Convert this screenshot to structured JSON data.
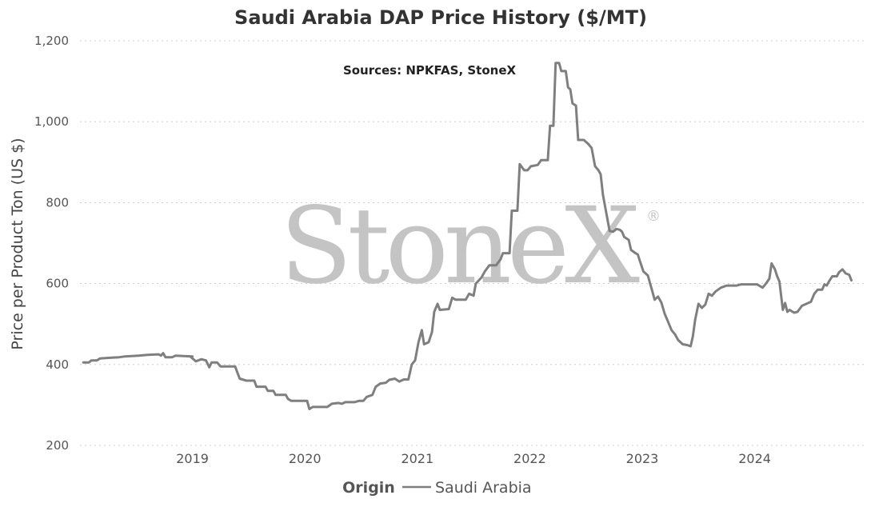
{
  "chart_data": {
    "type": "line",
    "title": "Saudi Arabia DAP Price History ($/MT)",
    "annotation": "Sources: NPKFAS, StoneX",
    "watermark": "StoneX",
    "watermark_mark": "®",
    "xlabel": "",
    "ylabel": "Price per Product Ton (US $)",
    "ylim": [
      200,
      1200
    ],
    "yticks": [
      200,
      400,
      600,
      800,
      1000,
      1200
    ],
    "ytick_labels": [
      "200",
      "400",
      "600",
      "800",
      "1,000",
      "1,200"
    ],
    "xlim": [
      2018.0,
      2024.97
    ],
    "xticks": [
      2019,
      2020,
      2021,
      2022,
      2023,
      2024
    ],
    "xtick_labels": [
      "2019",
      "2020",
      "2021",
      "2022",
      "2023",
      "2024"
    ],
    "grid": "horizontal dotted",
    "legend": {
      "title": "Origin",
      "placement": "bottom-center"
    },
    "colors": {
      "line": "#7f7f7f",
      "grid": "#cfcfcf"
    },
    "series": [
      {
        "name": "Saudi Arabia",
        "points": [
          [
            2018.03,
            405
          ],
          [
            2018.08,
            405
          ],
          [
            2018.1,
            410
          ],
          [
            2018.15,
            410
          ],
          [
            2018.18,
            415
          ],
          [
            2018.28,
            417
          ],
          [
            2018.35,
            418
          ],
          [
            2018.4,
            420
          ],
          [
            2018.52,
            422
          ],
          [
            2018.6,
            424
          ],
          [
            2018.7,
            425
          ],
          [
            2018.72,
            422
          ],
          [
            2018.74,
            428
          ],
          [
            2018.76,
            418
          ],
          [
            2018.82,
            418
          ],
          [
            2018.85,
            422
          ],
          [
            2019.0,
            420
          ],
          [
            2018.98,
            420
          ],
          [
            2019.03,
            408
          ],
          [
            2019.08,
            413
          ],
          [
            2019.12,
            410
          ],
          [
            2019.15,
            393
          ],
          [
            2019.17,
            405
          ],
          [
            2019.22,
            405
          ],
          [
            2019.25,
            395
          ],
          [
            2019.38,
            395
          ],
          [
            2019.4,
            380
          ],
          [
            2019.42,
            365
          ],
          [
            2019.48,
            360
          ],
          [
            2019.55,
            360
          ],
          [
            2019.57,
            345
          ],
          [
            2019.65,
            345
          ],
          [
            2019.67,
            335
          ],
          [
            2019.72,
            335
          ],
          [
            2019.74,
            325
          ],
          [
            2019.83,
            325
          ],
          [
            2019.85,
            315
          ],
          [
            2019.88,
            310
          ],
          [
            2020.02,
            310
          ],
          [
            2020.04,
            290
          ],
          [
            2020.07,
            295
          ],
          [
            2020.2,
            295
          ],
          [
            2020.24,
            303
          ],
          [
            2020.3,
            305
          ],
          [
            2020.33,
            303
          ],
          [
            2020.36,
            307
          ],
          [
            2020.44,
            307
          ],
          [
            2020.48,
            310
          ],
          [
            2020.52,
            310
          ],
          [
            2020.55,
            320
          ],
          [
            2020.6,
            325
          ],
          [
            2020.63,
            345
          ],
          [
            2020.67,
            353
          ],
          [
            2020.72,
            355
          ],
          [
            2020.75,
            362
          ],
          [
            2020.8,
            365
          ],
          [
            2020.84,
            358
          ],
          [
            2020.88,
            363
          ],
          [
            2020.92,
            363
          ],
          [
            2020.95,
            400
          ],
          [
            2020.98,
            410
          ],
          [
            2021.01,
            455
          ],
          [
            2021.04,
            485
          ],
          [
            2021.06,
            450
          ],
          [
            2021.1,
            455
          ],
          [
            2021.13,
            480
          ],
          [
            2021.15,
            530
          ],
          [
            2021.18,
            550
          ],
          [
            2021.2,
            535
          ],
          [
            2021.28,
            537
          ],
          [
            2021.31,
            565
          ],
          [
            2021.34,
            560
          ],
          [
            2021.43,
            560
          ],
          [
            2021.46,
            575
          ],
          [
            2021.5,
            570
          ],
          [
            2021.52,
            600
          ],
          [
            2021.57,
            615
          ],
          [
            2021.6,
            630
          ],
          [
            2021.64,
            645
          ],
          [
            2021.7,
            645
          ],
          [
            2021.74,
            660
          ],
          [
            2021.76,
            675
          ],
          [
            2021.82,
            675
          ],
          [
            2021.84,
            780
          ],
          [
            2021.89,
            780
          ],
          [
            2021.91,
            895
          ],
          [
            2021.95,
            880
          ],
          [
            2021.98,
            880
          ],
          [
            2022.01,
            890
          ],
          [
            2022.07,
            893
          ],
          [
            2022.1,
            905
          ],
          [
            2022.16,
            905
          ],
          [
            2022.18,
            990
          ],
          [
            2022.21,
            990
          ],
          [
            2022.23,
            1145
          ],
          [
            2022.26,
            1145
          ],
          [
            2022.28,
            1125
          ],
          [
            2022.32,
            1125
          ],
          [
            2022.34,
            1085
          ],
          [
            2022.36,
            1080
          ],
          [
            2022.38,
            1045
          ],
          [
            2022.41,
            1040
          ],
          [
            2022.43,
            955
          ],
          [
            2022.48,
            955
          ],
          [
            2022.52,
            945
          ],
          [
            2022.55,
            935
          ],
          [
            2022.58,
            890
          ],
          [
            2022.61,
            880
          ],
          [
            2022.63,
            870
          ],
          [
            2022.65,
            820
          ],
          [
            2022.68,
            775
          ],
          [
            2022.71,
            730
          ],
          [
            2022.74,
            728
          ],
          [
            2022.77,
            735
          ],
          [
            2022.8,
            733
          ],
          [
            2022.82,
            728
          ],
          [
            2022.84,
            715
          ],
          [
            2022.88,
            708
          ],
          [
            2022.9,
            683
          ],
          [
            2022.94,
            675
          ],
          [
            2022.96,
            672
          ],
          [
            2022.98,
            655
          ],
          [
            2023.01,
            630
          ],
          [
            2023.05,
            620
          ],
          [
            2023.08,
            590
          ],
          [
            2023.11,
            560
          ],
          [
            2023.14,
            568
          ],
          [
            2023.17,
            553
          ],
          [
            2023.2,
            525
          ],
          [
            2023.23,
            505
          ],
          [
            2023.26,
            485
          ],
          [
            2023.29,
            475
          ],
          [
            2023.32,
            460
          ],
          [
            2023.36,
            450
          ],
          [
            2023.4,
            448
          ],
          [
            2023.43,
            445
          ],
          [
            2023.45,
            470
          ],
          [
            2023.47,
            510
          ],
          [
            2023.5,
            550
          ],
          [
            2023.53,
            540
          ],
          [
            2023.56,
            548
          ],
          [
            2023.59,
            575
          ],
          [
            2023.62,
            570
          ],
          [
            2023.65,
            580
          ],
          [
            2023.7,
            590
          ],
          [
            2023.75,
            595
          ],
          [
            2023.84,
            595
          ],
          [
            2023.88,
            598
          ],
          [
            2024.02,
            598
          ],
          [
            2024.07,
            590
          ],
          [
            2024.1,
            600
          ],
          [
            2024.13,
            612
          ],
          [
            2024.15,
            650
          ],
          [
            2024.18,
            635
          ],
          [
            2024.2,
            618
          ],
          [
            2024.22,
            605
          ],
          [
            2024.25,
            535
          ],
          [
            2024.27,
            552
          ],
          [
            2024.29,
            530
          ],
          [
            2024.31,
            535
          ],
          [
            2024.35,
            528
          ],
          [
            2024.38,
            530
          ],
          [
            2024.42,
            545
          ],
          [
            2024.46,
            550
          ],
          [
            2024.5,
            555
          ],
          [
            2024.53,
            575
          ],
          [
            2024.56,
            585
          ],
          [
            2024.6,
            585
          ],
          [
            2024.62,
            598
          ],
          [
            2024.64,
            595
          ],
          [
            2024.66,
            605
          ],
          [
            2024.69,
            618
          ],
          [
            2024.73,
            618
          ],
          [
            2024.75,
            628
          ],
          [
            2024.78,
            635
          ],
          [
            2024.81,
            625
          ],
          [
            2024.84,
            622
          ],
          [
            2024.86,
            608
          ]
        ]
      }
    ]
  }
}
